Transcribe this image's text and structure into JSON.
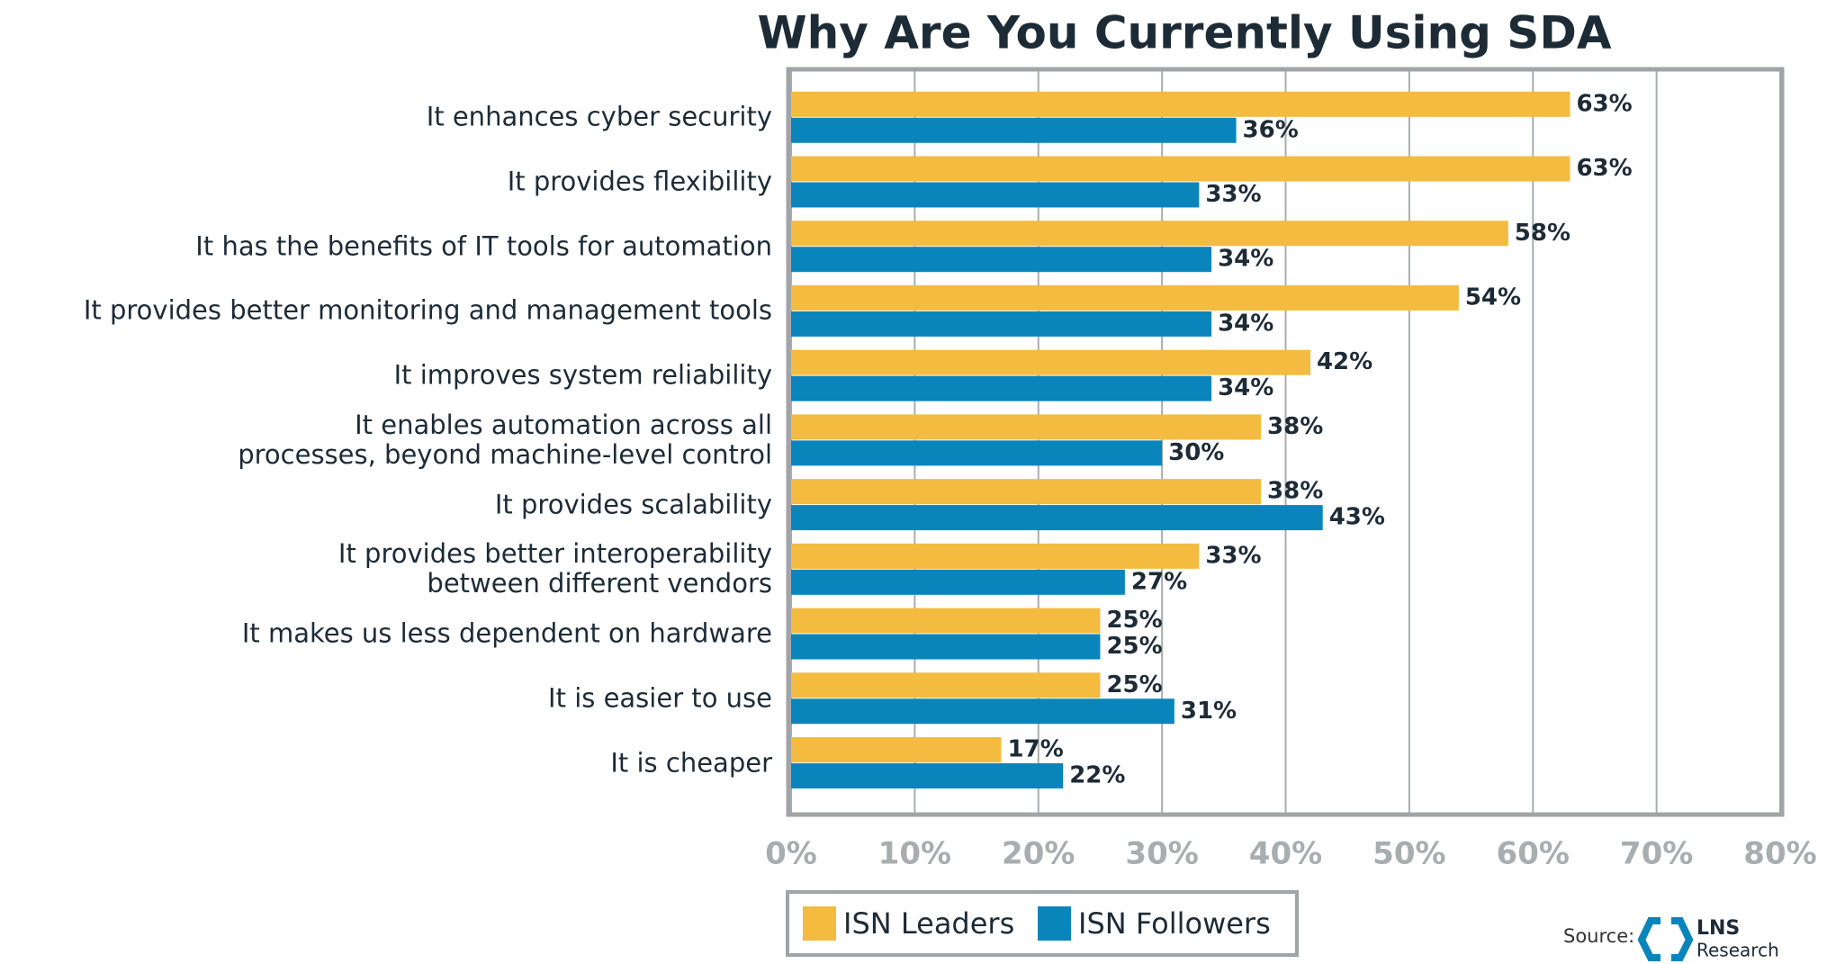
{
  "chart_data": {
    "type": "barh",
    "title": "Why Are You Currently Using SDA",
    "categories": [
      "It enhances cyber security",
      "It provides flexibility",
      "It has the benefits of IT tools for automation",
      "It provides better monitoring and management tools",
      "It improves system reliability",
      "It enables automation across all\nprocesses, beyond machine-level control",
      "It provides scalability",
      "It provides better interoperability\nbetween different vendors",
      "It makes us less dependent on hardware",
      "It is easier to use",
      "It is cheaper"
    ],
    "series": [
      {
        "name": "ISN Leaders",
        "color": "#f3bb3f",
        "values": [
          63,
          63,
          58,
          54,
          42,
          38,
          38,
          33,
          25,
          25,
          17
        ],
        "value_labels": [
          "63%",
          "63%",
          "58%",
          "54%",
          "42%",
          "38%",
          "38%",
          "33%",
          "25%",
          "25%",
          "17%"
        ]
      },
      {
        "name": "ISN Followers",
        "color": "#0a85bb",
        "values": [
          36,
          33,
          34,
          34,
          34,
          30,
          43,
          27,
          25,
          31,
          22
        ],
        "value_labels": [
          "36%",
          "33%",
          "34%",
          "34%",
          "34%",
          "30%",
          "43%",
          "27%",
          "25%",
          "31%",
          "22%"
        ]
      }
    ],
    "xlim": [
      0,
      80
    ],
    "xticks": [
      {
        "value": 0,
        "label": "0%"
      },
      {
        "value": 10,
        "label": "10%"
      },
      {
        "value": 20,
        "label": "20%"
      },
      {
        "value": 30,
        "label": "30%"
      },
      {
        "value": 40,
        "label": "40%"
      },
      {
        "value": 50,
        "label": "50%"
      },
      {
        "value": 60,
        "label": "60%"
      },
      {
        "value": 70,
        "label": "70%"
      },
      {
        "value": 80,
        "label": "80%"
      }
    ],
    "grid": true,
    "source": "Source:",
    "logo": {
      "name": "LNS",
      "subtitle": "Research"
    }
  }
}
